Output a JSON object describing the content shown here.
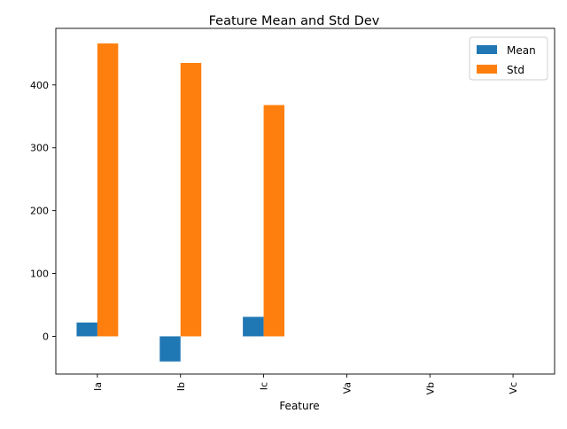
{
  "chart_data": {
    "type": "bar",
    "title": "Feature Mean and Std Dev",
    "xlabel": "Feature",
    "ylabel": "",
    "categories": [
      "Ia",
      "Ib",
      "Ic",
      "Va",
      "Vb",
      "Vc"
    ],
    "series": [
      {
        "name": "Mean",
        "color": "#1f77b4",
        "values": [
          22,
          -40,
          31,
          0,
          0,
          0
        ]
      },
      {
        "name": "Std",
        "color": "#ff7f0e",
        "values": [
          466,
          435,
          368,
          0,
          0,
          0
        ]
      }
    ],
    "ylim": [
      -60,
      490
    ],
    "yticks": [
      0,
      100,
      200,
      300,
      400
    ],
    "legend": "top-right",
    "grid": false
  }
}
